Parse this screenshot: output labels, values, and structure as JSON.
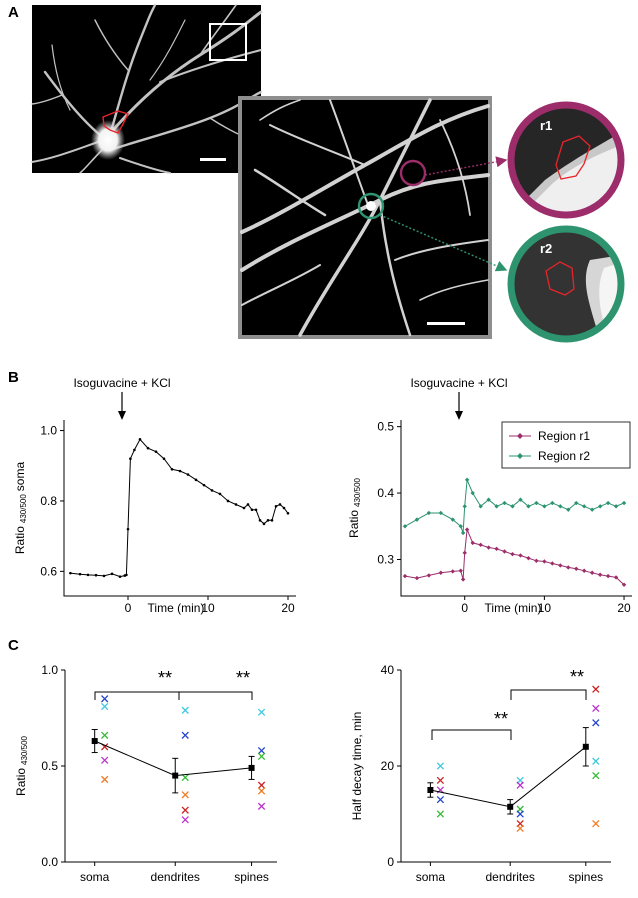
{
  "panels": {
    "a": "A",
    "b": "B",
    "c": "C"
  },
  "panel_a": {
    "roi_labels": [
      "r1",
      "r2"
    ],
    "colors": {
      "r1": "#9c2d6a",
      "r2": "#2e9470",
      "roi": "#e8242a"
    }
  },
  "panel_b": {
    "stimulus": "Isoguvacine + KCl",
    "left": {
      "ylabel": "Ratio",
      "ylabel_sub": "430/500",
      "ylabel_suffix": "soma",
      "xlabel": "Time (min)",
      "xticks": [
        "0",
        "10",
        "20"
      ],
      "yticks": [
        "0.6",
        "0.8",
        "1.0"
      ]
    },
    "right": {
      "ylabel": "Ratio",
      "ylabel_sub": "430/500",
      "xlabel": "Time (min)",
      "xticks": [
        "0",
        "10",
        "20"
      ],
      "yticks": [
        "0.3",
        "0.4",
        "0.5"
      ],
      "legend": [
        "Region r1",
        "Region r2"
      ]
    }
  },
  "panel_c": {
    "left": {
      "ylabel": "Ratio",
      "ylabel_sub": "430/500",
      "categories": [
        "soma",
        "dendrites",
        "spines"
      ],
      "yticks": [
        "0.0",
        "0.5",
        "1.0"
      ],
      "sig": [
        "**",
        "**"
      ]
    },
    "right": {
      "ylabel": "Half decay time, min",
      "categories": [
        "soma",
        "dendrites",
        "spines"
      ],
      "yticks": [
        "0",
        "20",
        "40"
      ],
      "sig": [
        "**",
        "**"
      ]
    }
  },
  "chart_data": [
    {
      "type": "line",
      "panel": "B-left",
      "xlabel": "Time (min)",
      "ylabel": "Ratio 430/500 soma",
      "xlim": [
        -8,
        21
      ],
      "ylim": [
        0.53,
        1.03
      ],
      "series": [
        {
          "x": [
            -7.2,
            -6,
            -5,
            -4,
            -3,
            -2,
            -1,
            -0.4,
            -0.2,
            0,
            0.3,
            0.8,
            1.5,
            2.5,
            3.5,
            4.5,
            5.5,
            6.5,
            7.5,
            8.5,
            9.5,
            10.5,
            11.5,
            12.5,
            13.5,
            14.5,
            15,
            15.5,
            16,
            16.5,
            17,
            17.5,
            18,
            18.5,
            19,
            19.5,
            20
          ],
          "y": [
            0.595,
            0.592,
            0.59,
            0.589,
            0.587,
            0.593,
            0.585,
            0.588,
            0.59,
            0.72,
            0.92,
            0.945,
            0.975,
            0.95,
            0.94,
            0.92,
            0.89,
            0.885,
            0.875,
            0.86,
            0.845,
            0.83,
            0.82,
            0.8,
            0.79,
            0.78,
            0.79,
            0.775,
            0.775,
            0.745,
            0.735,
            0.745,
            0.745,
            0.785,
            0.79,
            0.78,
            0.765
          ]
        }
      ]
    },
    {
      "type": "line",
      "panel": "B-right",
      "xlabel": "Time (min)",
      "ylabel": "Ratio 430/500",
      "xlim": [
        -8,
        21
      ],
      "ylim": [
        0.245,
        0.51
      ],
      "legend": "top-right",
      "series": [
        {
          "name": "Region r1",
          "color": "#9c2d6a",
          "x": [
            -7.5,
            -6,
            -4.5,
            -3,
            -1.5,
            -0.5,
            -0.2,
            0,
            0.3,
            1,
            2,
            3,
            4,
            5,
            6,
            7,
            8,
            9,
            10,
            11,
            12,
            13,
            14,
            15,
            16,
            17,
            18,
            19,
            20
          ],
          "y": [
            0.275,
            0.272,
            0.276,
            0.28,
            0.282,
            0.283,
            0.27,
            0.31,
            0.345,
            0.325,
            0.322,
            0.318,
            0.316,
            0.312,
            0.308,
            0.306,
            0.302,
            0.298,
            0.297,
            0.294,
            0.291,
            0.288,
            0.286,
            0.283,
            0.28,
            0.277,
            0.275,
            0.273,
            0.262
          ]
        },
        {
          "name": "Region r2",
          "color": "#2e9470",
          "x": [
            -7.5,
            -6,
            -4.5,
            -3,
            -1.5,
            -0.5,
            -0.2,
            0,
            0.3,
            1,
            2,
            3,
            4,
            5,
            6,
            7,
            8,
            9,
            10,
            11,
            12,
            13,
            14,
            15,
            16,
            17,
            18,
            19,
            20
          ],
          "y": [
            0.35,
            0.36,
            0.37,
            0.37,
            0.36,
            0.35,
            0.34,
            0.38,
            0.42,
            0.4,
            0.38,
            0.39,
            0.38,
            0.385,
            0.38,
            0.39,
            0.38,
            0.385,
            0.38,
            0.385,
            0.38,
            0.375,
            0.385,
            0.38,
            0.375,
            0.38,
            0.385,
            0.38,
            0.385
          ]
        }
      ]
    },
    {
      "type": "scatter",
      "panel": "C-left",
      "ylabel": "Ratio 430/500",
      "categories": [
        "soma",
        "dendrites",
        "spines"
      ],
      "ylim": [
        0,
        1
      ],
      "mean": [
        0.63,
        0.45,
        0.49
      ],
      "err": [
        0.06,
        0.09,
        0.06
      ],
      "points": [
        [
          [
            0.85,
            "#2244cc"
          ],
          [
            0.81,
            "#3ec8e0"
          ],
          [
            0.66,
            "#33bb33"
          ],
          [
            0.6,
            "#cc2222"
          ],
          [
            0.53,
            "#bb33cc"
          ],
          [
            0.43,
            "#f07b27"
          ]
        ],
        [
          [
            0.79,
            "#3ec8e0"
          ],
          [
            0.66,
            "#2244cc"
          ],
          [
            0.44,
            "#33bb33"
          ],
          [
            0.35,
            "#f07b27"
          ],
          [
            0.27,
            "#cc2222"
          ],
          [
            0.22,
            "#bb33cc"
          ]
        ],
        [
          [
            0.78,
            "#3ec8e0"
          ],
          [
            0.58,
            "#2244cc"
          ],
          [
            0.55,
            "#33bb33"
          ],
          [
            0.4,
            "#cc2222"
          ],
          [
            0.37,
            "#f07b27"
          ],
          [
            0.29,
            "#bb33cc"
          ]
        ]
      ]
    },
    {
      "type": "scatter",
      "panel": "C-right",
      "ylabel": "Half decay time, min",
      "categories": [
        "soma",
        "dendrites",
        "spines"
      ],
      "ylim": [
        0,
        40
      ],
      "mean": [
        15,
        11.5,
        24
      ],
      "err": [
        1.5,
        1.5,
        4
      ],
      "points": [
        [
          [
            20,
            "#3ec8e0"
          ],
          [
            17,
            "#cc2222"
          ],
          [
            15,
            "#bb33cc"
          ],
          [
            13,
            "#2244cc"
          ],
          [
            10,
            "#33bb33"
          ]
        ],
        [
          [
            17,
            "#3ec8e0"
          ],
          [
            16,
            "#bb33cc"
          ],
          [
            11,
            "#33bb33"
          ],
          [
            10,
            "#2244cc"
          ],
          [
            8,
            "#cc2222"
          ],
          [
            7,
            "#f07b27"
          ]
        ],
        [
          [
            36,
            "#cc2222"
          ],
          [
            32,
            "#bb33cc"
          ],
          [
            29,
            "#2244cc"
          ],
          [
            21,
            "#3ec8e0"
          ],
          [
            18,
            "#33bb33"
          ],
          [
            8,
            "#f07b27"
          ]
        ]
      ]
    }
  ]
}
